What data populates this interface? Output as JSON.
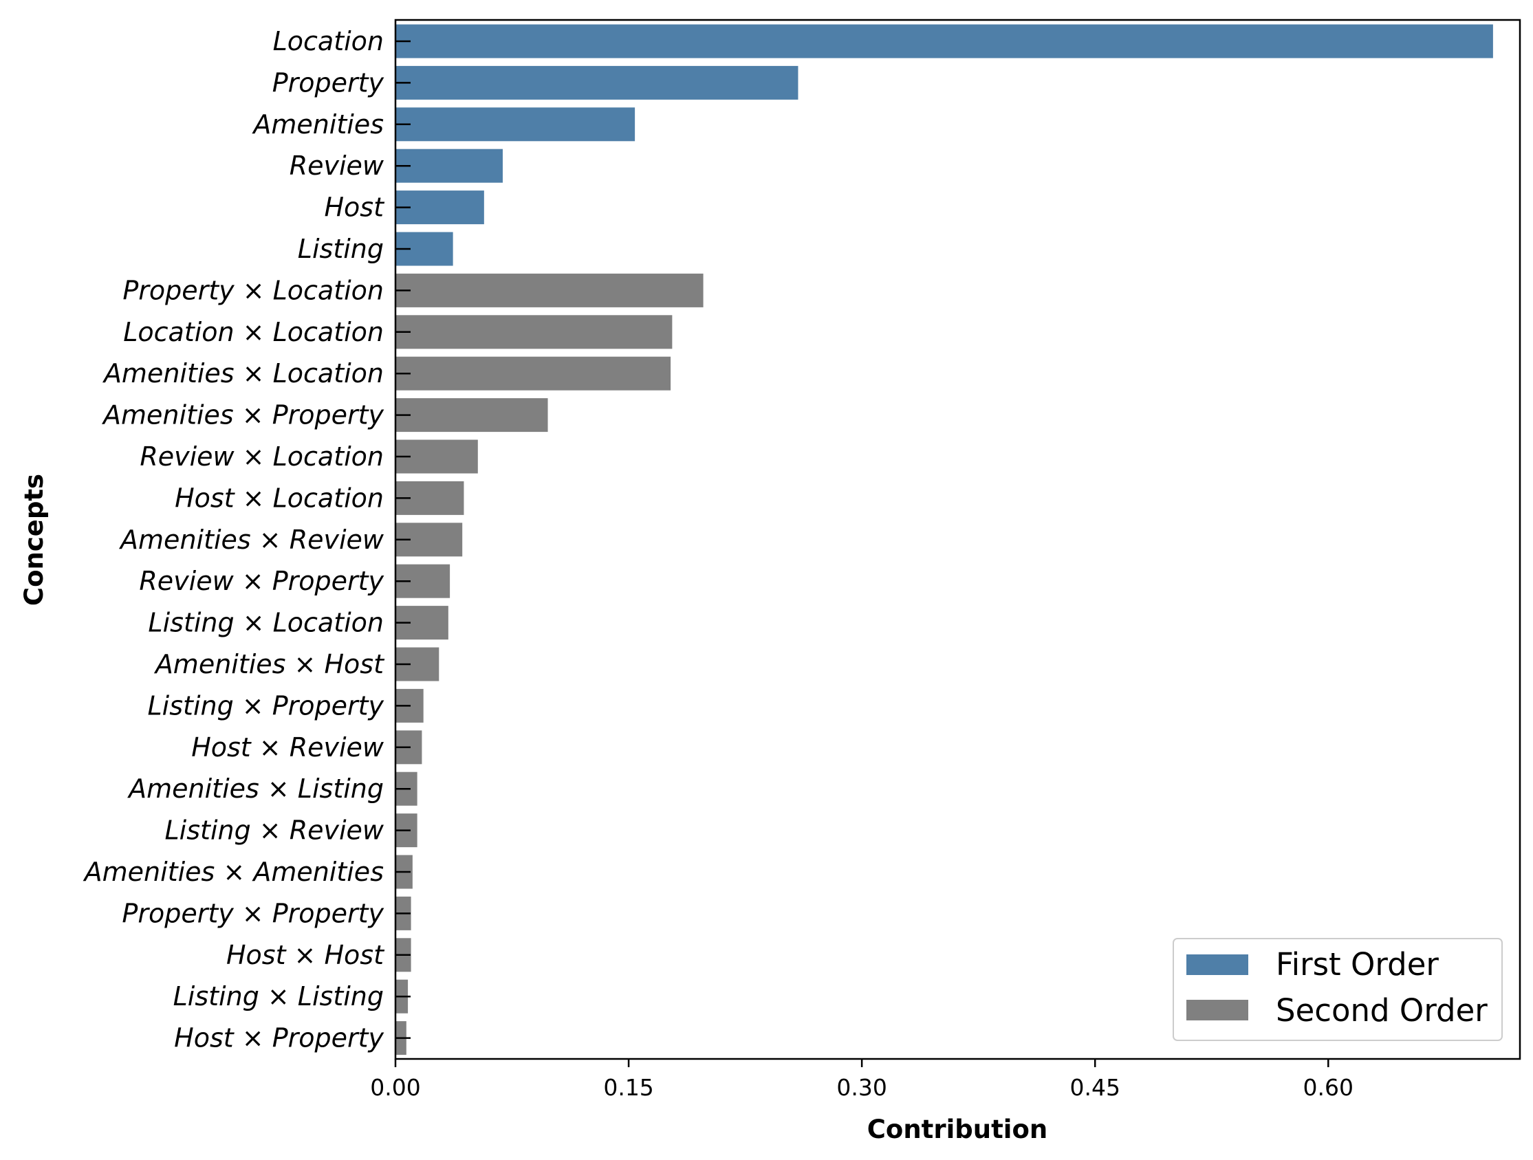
{
  "chart_data": {
    "type": "bar",
    "orientation": "horizontal",
    "xlabel": "Contribution",
    "ylabel": "Concepts",
    "xlim": [
      0,
      0.7233
    ],
    "xticks": [
      "0.00",
      "0.15",
      "0.30",
      "0.45",
      "0.60"
    ],
    "grid": false,
    "legend_position": "bottom-right",
    "colors": {
      "First Order": "#4f7fa8",
      "Second Order": "#808080"
    },
    "series": [
      {
        "name": "First Order",
        "categories": [
          "Location",
          "Property",
          "Amenities",
          "Review",
          "Host",
          "Listing"
        ],
        "values": [
          0.706,
          0.259,
          0.154,
          0.069,
          0.057,
          0.037
        ]
      },
      {
        "name": "Second Order",
        "categories": [
          "Property × Location",
          "Location × Location",
          "Amenities × Location",
          "Amenities × Property",
          "Review × Location",
          "Host × Location",
          "Amenities × Review",
          "Review × Property",
          "Listing × Location",
          "Amenities × Host",
          "Listing × Property",
          "Host × Review",
          "Amenities × Listing",
          "Listing × Review",
          "Amenities × Amenities",
          "Property × Property",
          "Host × Host",
          "Listing × Listing",
          "Host × Property"
        ],
        "values": [
          0.198,
          0.178,
          0.177,
          0.098,
          0.053,
          0.044,
          0.043,
          0.035,
          0.034,
          0.028,
          0.018,
          0.017,
          0.014,
          0.014,
          0.011,
          0.01,
          0.01,
          0.008,
          0.007
        ]
      }
    ]
  }
}
